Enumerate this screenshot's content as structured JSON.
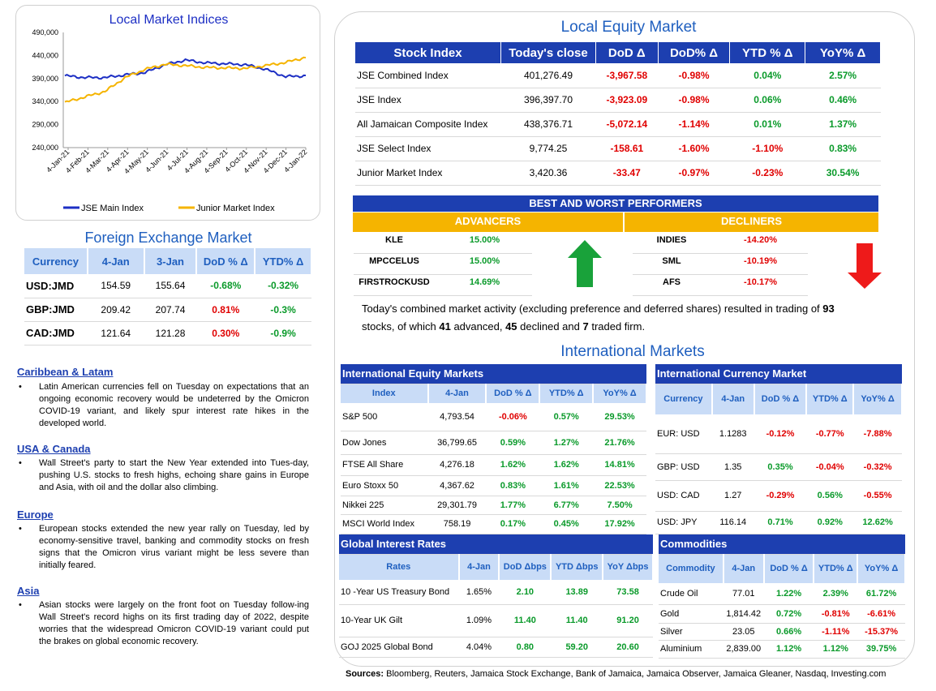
{
  "chart_data": {
    "type": "line",
    "title": "Local Market Indices",
    "x_tick_labels": [
      "4-Jan-21",
      "4-Feb-21",
      "4-Mar-21",
      "4-Apr-21",
      "4-May-21",
      "4-Jun-21",
      "4-Jul-21",
      "4-Aug-21",
      "4-Sep-21",
      "4-Oct-21",
      "4-Nov-21",
      "4-Dec-21",
      "4-Jan-22"
    ],
    "y_tick_labels": [
      "490,000",
      "440,000",
      "390,000",
      "340,000",
      "290,000",
      "240,000"
    ],
    "ylim": [
      240000,
      490000
    ],
    "grid": false,
    "legend_position": "bottom",
    "series": [
      {
        "name": "JSE Main Index",
        "color": "#1d2fc4",
        "values": [
          396000,
          392000,
          392000,
          398000,
          403000,
          420000,
          430000,
          424000,
          422000,
          420000,
          410000,
          394000,
          396000
        ]
      },
      {
        "name": "Junior Market Index",
        "color": "#f5b400",
        "values": [
          338000,
          350000,
          362000,
          392000,
          410000,
          421000,
          418000,
          414000,
          413000,
          412000,
          418000,
          425000,
          436000
        ]
      }
    ]
  },
  "local_equity": {
    "title": "Local Equity Market",
    "headers": [
      "Stock Index",
      "Today's close",
      "DoD  Δ",
      "DoD% Δ",
      "YTD % Δ",
      "YoY% Δ"
    ],
    "rows": [
      [
        "JSE Combined Index",
        "401,276.49",
        "-3,967.58",
        "-0.98%",
        "0.04%",
        "2.57%"
      ],
      [
        "JSE Index",
        "396,397.70",
        "-3,923.09",
        "-0.98%",
        "0.06%",
        "0.46%"
      ],
      [
        "All Jamaican Composite Index",
        "438,376.71",
        "-5,072.14",
        "-1.14%",
        "0.01%",
        "1.37%"
      ],
      [
        "JSE Select Index",
        "9,774.25",
        "-158.61",
        "-1.60%",
        "-1.10%",
        "0.83%"
      ],
      [
        "Junior Market Index",
        "3,420.36",
        "-33.47",
        "-0.97%",
        "-0.23%",
        "30.54%"
      ]
    ]
  },
  "performers": {
    "title": "BEST AND WORST PERFORMERS",
    "advancers_label": "ADVANCERS",
    "decliners_label": "DECLINERS",
    "advancers": [
      [
        "KLE",
        "15.00%"
      ],
      [
        "MPCCELUS",
        "15.00%"
      ],
      [
        "FIRSTROCKUSD",
        "14.69%"
      ]
    ],
    "decliners": [
      [
        "INDIES",
        "-14.20%"
      ],
      [
        "SML",
        "-10.19%"
      ],
      [
        "AFS",
        "-10.17%"
      ]
    ]
  },
  "summary": {
    "t1": "Today's combined market activity (excluding preference and deferred shares) resulted in trading of ",
    "n1": "93",
    "t2": " stocks, of which ",
    "n2": "41",
    "t3": " advanced, ",
    "n3": "45",
    "t4": " declined and ",
    "n4": "7",
    "t5": " traded firm."
  },
  "fx": {
    "title": "Foreign Exchange Market",
    "headers": [
      "Currency",
      "4-Jan",
      "3-Jan",
      "DoD % Δ",
      "YTD% Δ"
    ],
    "rows": [
      [
        "USD:JMD",
        "154.59",
        "155.64",
        "-0.68%",
        "-0.32%"
      ],
      [
        "GBP:JMD",
        "209.42",
        "207.74",
        "0.81%",
        "-0.3%"
      ],
      [
        "CAD:JMD",
        "121.64",
        "121.28",
        "0.30%",
        "-0.9%"
      ]
    ]
  },
  "news": [
    {
      "heading": "Caribbean & Latam",
      "body": "Latin American currencies fell on Tuesday on expectations that an ongoing economic recovery would be undeterred by the Omicron COVID-19 variant, and likely spur interest rate hikes in the developed world."
    },
    {
      "heading": "USA & Canada",
      "body": "Wall Street's party to start the New Year extended into Tues-day, pushing U.S. stocks to fresh highs, echoing share gains in Europe and Asia, with oil and the dollar also climbing."
    },
    {
      "heading": "Europe",
      "body": "European stocks extended the new year rally on Tuesday, led by economy-sensitive travel, banking and commodity stocks on fresh signs that the Omicron virus variant might be less severe than initially feared."
    },
    {
      "heading": "Asia",
      "body": "Asian stocks were largely on the front foot on Tuesday follow-ing Wall Street's record highs on its first trading day of 2022, despite worries that the widespread Omicron COVID-19 variant could put the brakes on global economic recovery."
    }
  ],
  "intl": {
    "title": "International Markets",
    "equity": {
      "title": "International Equity Markets",
      "headers": [
        "Index",
        "4-Jan",
        "DoD % Δ",
        "YTD% Δ",
        "YoY% Δ"
      ],
      "rows": [
        [
          "S&P 500",
          "4,793.54",
          "-0.06%",
          "0.57%",
          "29.53%"
        ],
        [
          "Dow Jones",
          "36,799.65",
          "0.59%",
          "1.27%",
          "21.76%"
        ],
        [
          "FTSE All Share",
          "4,276.18",
          "1.62%",
          "1.62%",
          "14.81%"
        ],
        [
          "Euro Stoxx 50",
          "4,367.62",
          "0.83%",
          "1.61%",
          "22.53%"
        ],
        [
          "Nikkei 225",
          "29,301.79",
          "1.77%",
          "6.77%",
          "7.50%"
        ],
        [
          "MSCI World Index",
          "758.19",
          "0.17%",
          "0.45%",
          "17.92%"
        ]
      ]
    },
    "currency": {
      "title": "International Currency Market",
      "headers": [
        "Currency",
        "4-Jan",
        "DoD % Δ",
        "YTD% Δ",
        "YoY% Δ"
      ],
      "rows": [
        [
          "EUR: USD",
          "1.1283",
          "-0.12%",
          "-0.77%",
          "-7.88%"
        ],
        [
          "GBP: USD",
          "1.35",
          "0.35%",
          "-0.04%",
          "-0.32%"
        ],
        [
          "USD: CAD",
          "1.27",
          "-0.29%",
          "0.56%",
          "-0.55%"
        ],
        [
          "USD: JPY",
          "116.14",
          "0.71%",
          "0.92%",
          "12.62%"
        ]
      ]
    },
    "rates": {
      "title": "Global Interest Rates",
      "headers": [
        "Rates",
        "4-Jan",
        "DoD Δbps",
        "YTD Δbps",
        "YoY Δbps"
      ],
      "rows": [
        [
          "10 -Year US Treasury Bond",
          "1.65%",
          "2.10",
          "13.89",
          "73.58"
        ],
        [
          "10-Year UK Gilt",
          "1.09%",
          "11.40",
          "11.40",
          "91.20"
        ],
        [
          "GOJ 2025 Global Bond",
          "4.04%",
          "0.80",
          "59.20",
          "20.60"
        ]
      ]
    },
    "commodities": {
      "title": "Commodities",
      "headers": [
        "Commodity",
        "4-Jan",
        "DoD % Δ",
        "YTD% Δ",
        "YoY% Δ"
      ],
      "rows": [
        [
          "Crude Oil",
          "77.01",
          "1.22%",
          "2.39%",
          "61.72%"
        ],
        [
          "Gold",
          "1,814.42",
          "0.72%",
          "-0.81%",
          "-6.61%"
        ],
        [
          "Silver",
          "23.05",
          "0.66%",
          "-1.11%",
          "-15.37%"
        ],
        [
          "Aluminium",
          "2,839.00",
          "1.12%",
          "1.12%",
          "39.75%"
        ]
      ]
    }
  },
  "sources": {
    "label": "Sources:",
    "text": " Bloomberg, Reuters, Jamaica Stock Exchange, Bank of Jamaica, Jamaica Observer, Jamaica Gleaner, Nasdaq, Investing.com"
  }
}
